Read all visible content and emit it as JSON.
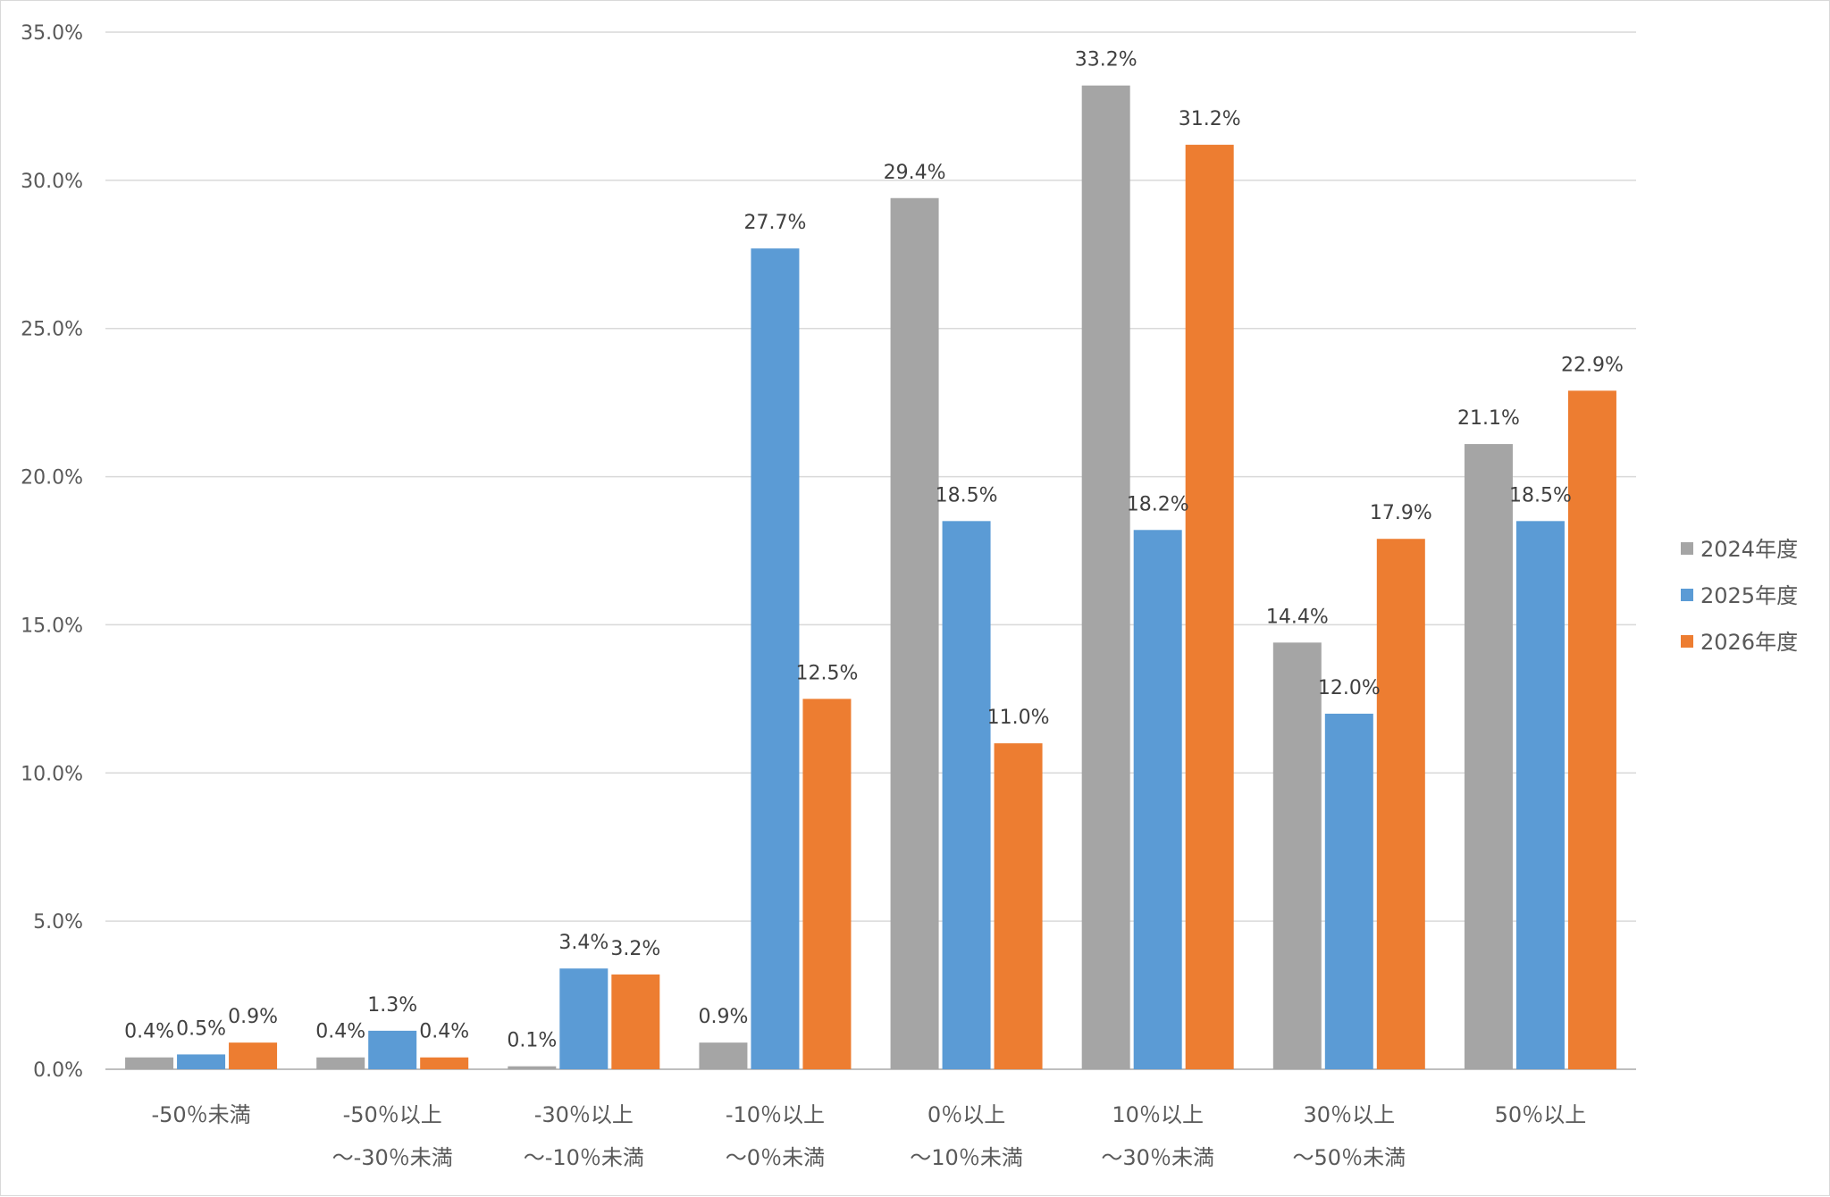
{
  "chart_data": {
    "type": "bar",
    "categories": [
      [
        "-50％未満"
      ],
      [
        "-50％以上",
        "～-30％未満"
      ],
      [
        "-30％以上",
        "～-10％未満"
      ],
      [
        "-10％以上",
        "～0％未満"
      ],
      [
        "0％以上",
        "～10％未満"
      ],
      [
        "10％以上",
        "～30％未満"
      ],
      [
        "30％以上",
        "～50％未満"
      ],
      [
        "50％以上"
      ]
    ],
    "series": [
      {
        "name": "2024年度",
        "color": "#a5a5a5",
        "values": [
          0.4,
          0.4,
          0.1,
          0.9,
          29.4,
          33.2,
          14.4,
          21.1
        ],
        "labels": [
          "0.4%",
          "0.4%",
          "0.1%",
          "0.9%",
          "29.4%",
          "33.2%",
          "14.4%",
          "21.1%"
        ]
      },
      {
        "name": "2025年度",
        "color": "#5b9bd5",
        "values": [
          0.5,
          1.3,
          3.4,
          27.7,
          18.5,
          18.2,
          12.0,
          18.5
        ],
        "labels": [
          "0.5%",
          "1.3%",
          "3.4%",
          "27.7%",
          "18.5%",
          "18.2%",
          "12.0%",
          "18.5%"
        ]
      },
      {
        "name": "2026年度",
        "color": "#ed7d31",
        "values": [
          0.9,
          0.4,
          3.2,
          12.5,
          11.0,
          31.2,
          17.9,
          22.9
        ],
        "labels": [
          "0.9%",
          "0.4%",
          "3.2%",
          "12.5%",
          "11.0%",
          "31.2%",
          "17.9%",
          "22.9%"
        ]
      }
    ],
    "ylim": [
      0,
      35
    ],
    "yticks": [
      "0.0%",
      "5.0%",
      "10.0%",
      "15.0%",
      "20.0%",
      "25.0%",
      "30.0%",
      "35.0%"
    ],
    "grid": true,
    "legend_position": "right"
  }
}
